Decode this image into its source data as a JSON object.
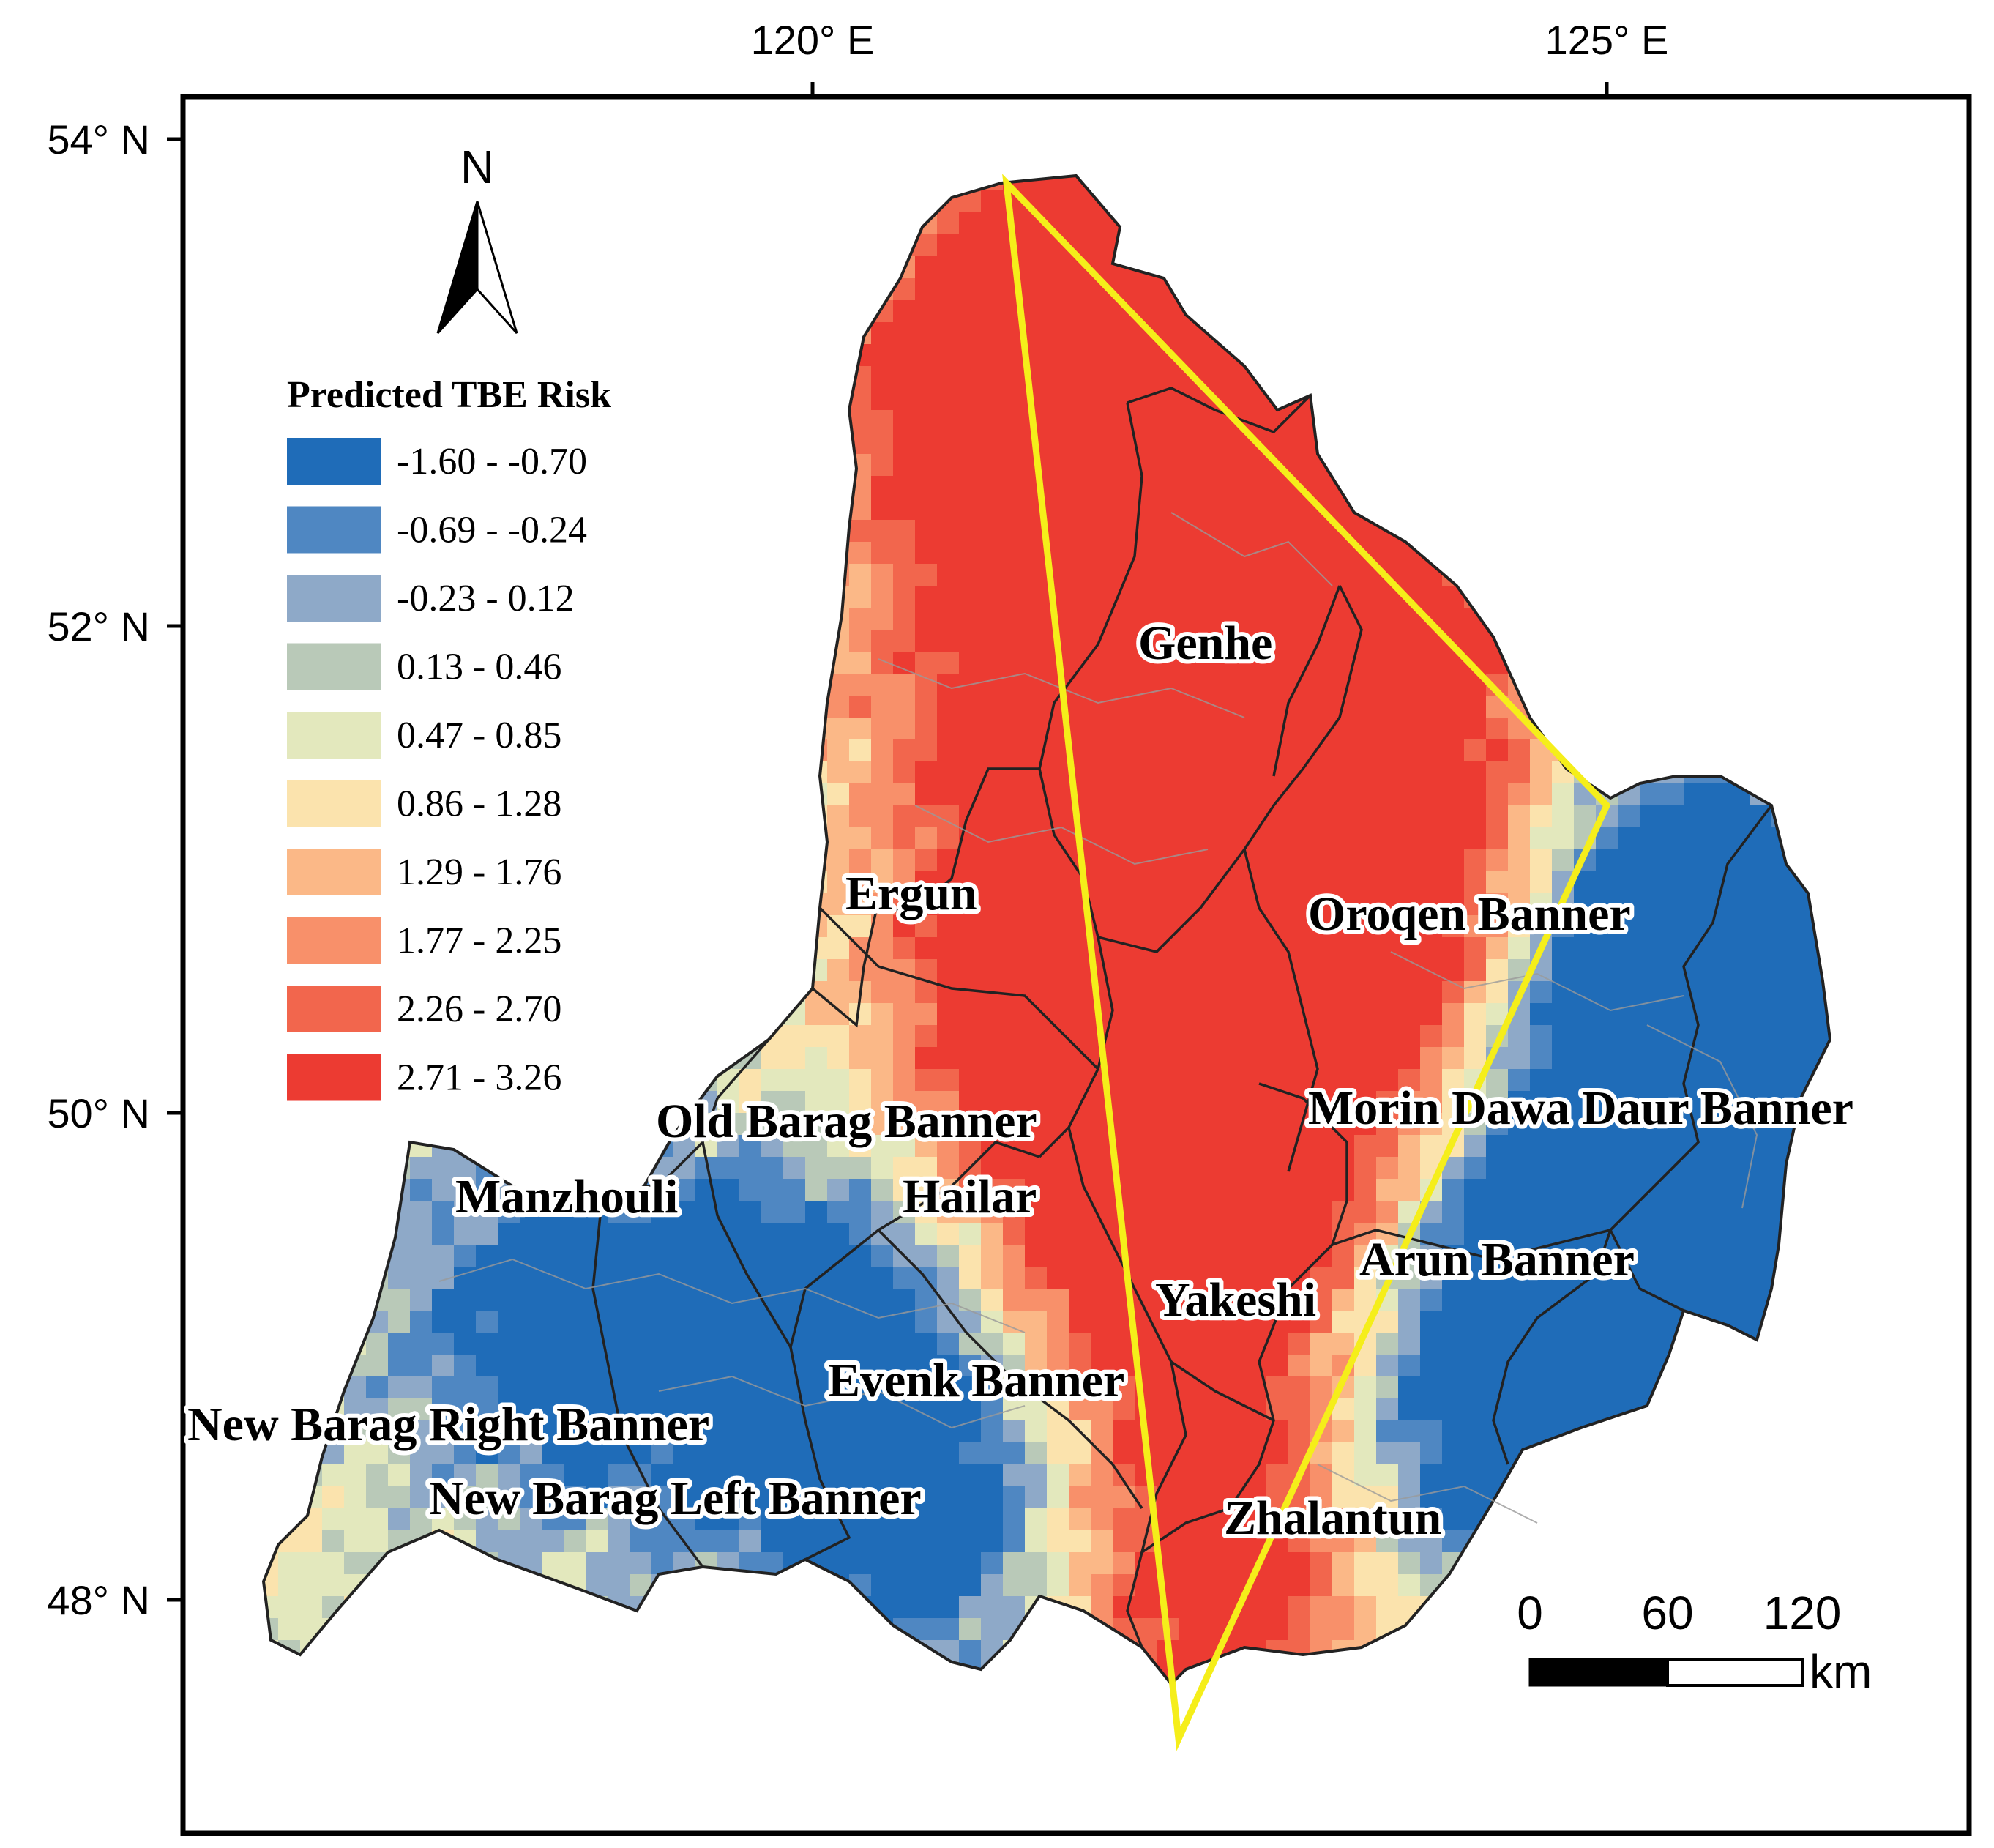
{
  "map": {
    "axes": {
      "top_ticks": [
        "120° E",
        "125° E"
      ],
      "left_ticks": [
        "54° N",
        "52° N",
        "50° N",
        "48° N"
      ]
    },
    "north_arrow": {
      "letter": "N",
      "icon": "north-arrow-icon"
    },
    "legend": {
      "title": "Predicted TBE Risk",
      "classes": [
        {
          "label": "-1.60 - -0.70",
          "color": "#1f6cb8"
        },
        {
          "label": "-0.69 - -0.24",
          "color": "#4f87c2"
        },
        {
          "label": "-0.23 - 0.12",
          "color": "#8ea9c8"
        },
        {
          "label": "0.13 - 0.46",
          "color": "#b9c9b8"
        },
        {
          "label": "0.47 - 0.85",
          "color": "#e3e8bd"
        },
        {
          "label": "0.86 - 1.28",
          "color": "#fbe3ad"
        },
        {
          "label": "1.29 - 1.76",
          "color": "#fbb887"
        },
        {
          "label": "1.77 - 2.25",
          "color": "#f8906a"
        },
        {
          "label": "2.26 - 2.70",
          "color": "#f2664d"
        },
        {
          "label": "2.71 - 3.26",
          "color": "#ec3b32"
        }
      ]
    },
    "places": [
      "Genhe",
      "Ergun",
      "Oroqen Banner",
      "Old Barag Banner",
      "Morin Dawa Daur Banner",
      "Manzhouli",
      "Hailar",
      "Arun Banner",
      "Yakeshi",
      "Evenk Banner",
      "New Barag Right Banner",
      "New Barag Left Banner",
      "Zhalantun"
    ],
    "scale_bar": {
      "labels": [
        "0",
        "60",
        "120"
      ],
      "unit": "km"
    },
    "highlight_color": "#f5ee1a"
  }
}
